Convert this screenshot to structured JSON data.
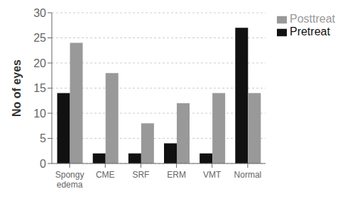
{
  "chart_data": {
    "type": "bar",
    "categories": [
      "Spongy\nedema",
      "CME",
      "SRF",
      "ERM",
      "VMT",
      "Normal"
    ],
    "series": [
      {
        "name": "Pretreat",
        "color": "#111111",
        "values": [
          14,
          2,
          2,
          4,
          2,
          27
        ]
      },
      {
        "name": "Posttreat",
        "color": "#999999",
        "values": [
          24,
          18,
          8,
          12,
          14,
          14
        ]
      }
    ],
    "ylabel": "No of eyes",
    "ylim": [
      0,
      30
    ],
    "yticks": [
      0,
      5,
      10,
      15,
      20,
      25,
      30
    ],
    "grid": true,
    "legend": "right"
  }
}
